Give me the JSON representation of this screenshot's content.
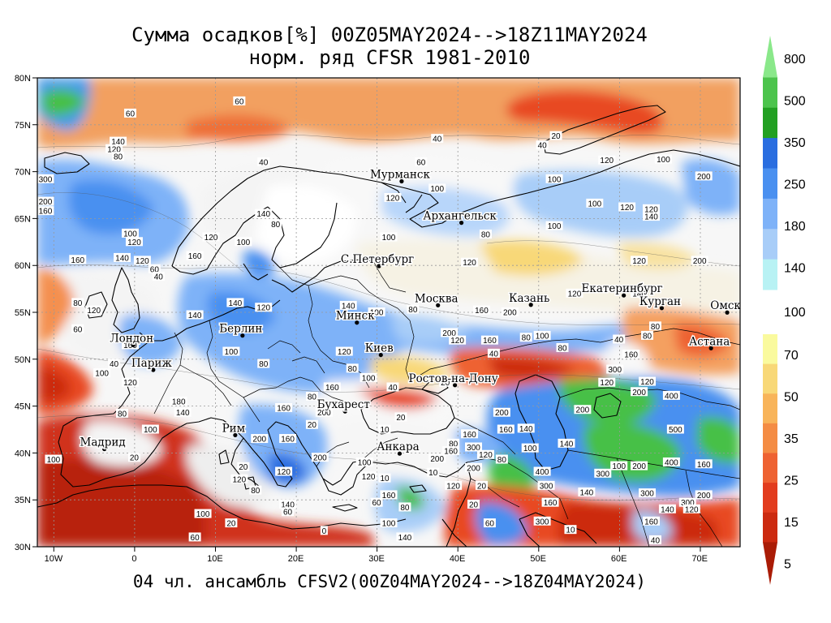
{
  "title_line1": "Сумма осадков[%] 00Z05MAY2024-->18Z11MAY2024",
  "title_line2": "норм. ряд CFSR 1981-2010",
  "footer": "04 чл. ансамбль CFSV2(00Z04MAY2024-->18Z04MAY2024)",
  "lat_labels": [
    "80N",
    "75N",
    "70N",
    "65N",
    "60N",
    "55N",
    "50N",
    "45N",
    "40N",
    "35N",
    "30N"
  ],
  "lon_labels": [
    "10W",
    "0",
    "10E",
    "20E",
    "30E",
    "40E",
    "50E",
    "60E",
    "70E"
  ],
  "cities": [
    {
      "name": "Мурманск",
      "lon": 33.1,
      "lat": 68.97
    },
    {
      "name": "Архангельск",
      "lon": 40.5,
      "lat": 64.55
    },
    {
      "name": "С.Петербург",
      "lon": 30.3,
      "lat": 59.93
    },
    {
      "name": "Москва",
      "lon": 37.6,
      "lat": 55.75
    },
    {
      "name": "Казань",
      "lon": 49.1,
      "lat": 55.8
    },
    {
      "name": "Екатеринбург",
      "lon": 60.6,
      "lat": 56.8
    },
    {
      "name": "Курган",
      "lon": 65.3,
      "lat": 55.45
    },
    {
      "name": "Омск",
      "lon": 73.4,
      "lat": 54.98
    },
    {
      "name": "Астана",
      "lon": 71.4,
      "lat": 51.17
    },
    {
      "name": "Минск",
      "lon": 27.56,
      "lat": 53.9
    },
    {
      "name": "Берлин",
      "lon": 13.4,
      "lat": 52.52
    },
    {
      "name": "Лондон",
      "lon": -0.12,
      "lat": 51.5
    },
    {
      "name": "Париж",
      "lon": 2.35,
      "lat": 48.86
    },
    {
      "name": "Киев",
      "lon": 30.52,
      "lat": 50.45
    },
    {
      "name": "Ростов-на-Дону",
      "lon": 39.7,
      "lat": 47.23
    },
    {
      "name": "Бухарест",
      "lon": 26.1,
      "lat": 44.43
    },
    {
      "name": "Рим",
      "lon": 12.5,
      "lat": 41.9
    },
    {
      "name": "Мадрид",
      "lon": -3.7,
      "lat": 40.42
    },
    {
      "name": "Анкара",
      "lon": 32.85,
      "lat": 39.93
    }
  ],
  "colorbar": {
    "upper_levels": [
      "800",
      "500",
      "350",
      "250",
      "180",
      "140"
    ],
    "middle_level": "100",
    "lower_levels": [
      "70",
      "50",
      "35",
      "25",
      "15",
      "5"
    ],
    "upper_colors": [
      "#8ae88a",
      "#4cc44c",
      "#22a022",
      "#2a6ee0",
      "#4a90f0",
      "#7eb2f8",
      "#a8cdf8",
      "#b8f2f4"
    ],
    "lower_colors": [
      "#fafa9e",
      "#f8d878",
      "#f8b45a",
      "#f48c44",
      "#ee6232",
      "#e23c1e",
      "#cc2a10",
      "#aa1c06"
    ]
  },
  "contour_labels": [
    {
      "t": "60",
      "lon": -0.5,
      "lat": 76.2
    },
    {
      "t": "60",
      "lon": 13,
      "lat": 77.5
    },
    {
      "t": "40",
      "lon": 37.5,
      "lat": 73.5
    },
    {
      "t": "20",
      "lon": 52.2,
      "lat": 73.8
    },
    {
      "t": "40",
      "lon": 50.5,
      "lat": 72.8
    },
    {
      "t": "100",
      "lon": 65.5,
      "lat": 71.3
    },
    {
      "t": "140",
      "lon": -2,
      "lat": 73.2
    },
    {
      "t": "120",
      "lon": -2.5,
      "lat": 72.4
    },
    {
      "t": "80",
      "lon": -2,
      "lat": 71.6
    },
    {
      "t": "300",
      "lon": -11,
      "lat": 69.2
    },
    {
      "t": "200",
      "lon": -11,
      "lat": 66.8
    },
    {
      "t": "160",
      "lon": -11,
      "lat": 65.8
    },
    {
      "t": "40",
      "lon": 16,
      "lat": 71
    },
    {
      "t": "120",
      "lon": 32,
      "lat": 67.2
    },
    {
      "t": "100",
      "lon": 37.5,
      "lat": 68.2
    },
    {
      "t": "60",
      "lon": 35.5,
      "lat": 71
    },
    {
      "t": "100",
      "lon": 52,
      "lat": 69.2
    },
    {
      "t": "120",
      "lon": 58.5,
      "lat": 71.2
    },
    {
      "t": "100",
      "lon": 57,
      "lat": 66.6
    },
    {
      "t": "120",
      "lon": 61,
      "lat": 66.2
    },
    {
      "t": "140",
      "lon": 64,
      "lat": 65.2
    },
    {
      "t": "120",
      "lon": 64,
      "lat": 66
    },
    {
      "t": "200",
      "lon": 70.5,
      "lat": 69.5
    },
    {
      "t": "80",
      "lon": 43.5,
      "lat": 63.3
    },
    {
      "t": "100",
      "lon": 52,
      "lat": 64.2
    },
    {
      "t": "100",
      "lon": 31.5,
      "lat": 63
    },
    {
      "t": "120",
      "lon": 41.5,
      "lat": 60.3
    },
    {
      "t": "120",
      "lon": 62.5,
      "lat": 60.5
    },
    {
      "t": "200",
      "lon": 70,
      "lat": 60.5
    },
    {
      "t": "140",
      "lon": 16,
      "lat": 65.5
    },
    {
      "t": "80",
      "lon": 17.5,
      "lat": 64.4
    },
    {
      "t": "100",
      "lon": 13.5,
      "lat": 62.5
    },
    {
      "t": "120",
      "lon": 9.5,
      "lat": 63
    },
    {
      "t": "160",
      "lon": 7.5,
      "lat": 61
    },
    {
      "t": "160",
      "lon": -7,
      "lat": 60.6
    },
    {
      "t": "120",
      "lon": 0,
      "lat": 62.5
    },
    {
      "t": "100",
      "lon": -0.5,
      "lat": 63.4
    },
    {
      "t": "120",
      "lon": 1,
      "lat": 60.5
    },
    {
      "t": "60",
      "lon": 2.5,
      "lat": 59.6
    },
    {
      "t": "40",
      "lon": 3,
      "lat": 58.8
    },
    {
      "t": "140",
      "lon": -1.5,
      "lat": 60.8
    },
    {
      "t": "80",
      "lon": -7,
      "lat": 56
    },
    {
      "t": "120",
      "lon": -5,
      "lat": 55.2
    },
    {
      "t": "140",
      "lon": 7.5,
      "lat": 54.7
    },
    {
      "t": "120",
      "lon": 16,
      "lat": 55.5
    },
    {
      "t": "140",
      "lon": 12.5,
      "lat": 56
    },
    {
      "t": "80",
      "lon": 34.5,
      "lat": 55.3
    },
    {
      "t": "100",
      "lon": 30,
      "lat": 55
    },
    {
      "t": "140",
      "lon": 26.5,
      "lat": 55.7
    },
    {
      "t": "160",
      "lon": 43,
      "lat": 55.2
    },
    {
      "t": "200",
      "lon": 46.5,
      "lat": 55
    },
    {
      "t": "120",
      "lon": 54.5,
      "lat": 57
    },
    {
      "t": "140",
      "lon": 62.5,
      "lat": 57
    },
    {
      "t": "200",
      "lon": 39,
      "lat": 52.8
    },
    {
      "t": "120",
      "lon": 40,
      "lat": 52
    },
    {
      "t": "160",
      "lon": 44,
      "lat": 52
    },
    {
      "t": "80",
      "lon": 48.5,
      "lat": 52.3
    },
    {
      "t": "100",
      "lon": 50.5,
      "lat": 52.5
    },
    {
      "t": "40",
      "lon": 44.5,
      "lat": 50.6
    },
    {
      "t": "80",
      "lon": 53,
      "lat": 51.2
    },
    {
      "t": "40",
      "lon": 60,
      "lat": 52.1
    },
    {
      "t": "80",
      "lon": 63.5,
      "lat": 52.5
    },
    {
      "t": "160",
      "lon": 61.5,
      "lat": 50.5
    },
    {
      "t": "300",
      "lon": 59.5,
      "lat": 48.9
    },
    {
      "t": "120",
      "lon": 63.5,
      "lat": 47.6
    },
    {
      "t": "200",
      "lon": 62.5,
      "lat": 46.5
    },
    {
      "t": "400",
      "lon": 66.5,
      "lat": 46.1
    },
    {
      "t": "500",
      "lon": 67,
      "lat": 42.5
    },
    {
      "t": "400",
      "lon": 66.5,
      "lat": 39
    },
    {
      "t": "160",
      "lon": 70.5,
      "lat": 38.8
    },
    {
      "t": "200",
      "lon": 70.5,
      "lat": 35.5
    },
    {
      "t": "300",
      "lon": 68.5,
      "lat": 34.7
    },
    {
      "t": "300",
      "lon": 63.5,
      "lat": 35.7
    },
    {
      "t": "140",
      "lon": 56,
      "lat": 35.8
    },
    {
      "t": "100",
      "lon": 60,
      "lat": 38.6
    },
    {
      "t": "200",
      "lon": 62.5,
      "lat": 38.6
    },
    {
      "t": "300",
      "lon": 58,
      "lat": 37.8
    },
    {
      "t": "160",
      "lon": 51.5,
      "lat": 34.7
    },
    {
      "t": "300",
      "lon": 50.5,
      "lat": 32.7
    },
    {
      "t": "10",
      "lon": 54,
      "lat": 31.8
    },
    {
      "t": "160",
      "lon": 64,
      "lat": 32.7
    },
    {
      "t": "140",
      "lon": 66,
      "lat": 34
    },
    {
      "t": "120",
      "lon": 69,
      "lat": 34
    },
    {
      "t": "40",
      "lon": 64.5,
      "lat": 30.7
    },
    {
      "t": "200",
      "lon": 45.5,
      "lat": 44.3
    },
    {
      "t": "160",
      "lon": 46,
      "lat": 42.5
    },
    {
      "t": "300",
      "lon": 42,
      "lat": 40.6
    },
    {
      "t": "160",
      "lon": 41.5,
      "lat": 42
    },
    {
      "t": "80",
      "lon": 39.5,
      "lat": 41
    },
    {
      "t": "200",
      "lon": 37.5,
      "lat": 39.4
    },
    {
      "t": "160",
      "lon": 39.2,
      "lat": 40.2
    },
    {
      "t": "120",
      "lon": 43.5,
      "lat": 39.8
    },
    {
      "t": "80",
      "lon": 45.5,
      "lat": 39.3
    },
    {
      "t": "100",
      "lon": 49,
      "lat": 40.5
    },
    {
      "t": "140",
      "lon": 48.5,
      "lat": 42.6
    },
    {
      "t": "200",
      "lon": 42,
      "lat": 38.4
    },
    {
      "t": "120",
      "lon": 39.5,
      "lat": 36.5
    },
    {
      "t": "20",
      "lon": 43,
      "lat": 36.5
    },
    {
      "t": "160",
      "lon": 31.5,
      "lat": 35.5
    },
    {
      "t": "80",
      "lon": 33.5,
      "lat": 34.2
    },
    {
      "t": "60",
      "lon": 30,
      "lat": 34.7
    },
    {
      "t": "100",
      "lon": 31.5,
      "lat": 32.5
    },
    {
      "t": "140",
      "lon": 33.5,
      "lat": 31
    },
    {
      "t": "10",
      "lon": 37,
      "lat": 37.9
    },
    {
      "t": "20",
      "lon": 33,
      "lat": 43.8
    },
    {
      "t": "10",
      "lon": 31,
      "lat": 42.5
    },
    {
      "t": "20",
      "lon": 38.5,
      "lat": 47.5
    },
    {
      "t": "40",
      "lon": 32,
      "lat": 47
    },
    {
      "t": "100",
      "lon": 29,
      "lat": 48
    },
    {
      "t": "80",
      "lon": 27,
      "lat": 49
    },
    {
      "t": "160",
      "lon": 24.5,
      "lat": 47
    },
    {
      "t": "20",
      "lon": 22,
      "lat": 43
    },
    {
      "t": "80",
      "lon": 22,
      "lat": 46
    },
    {
      "t": "120",
      "lon": 26,
      "lat": 50.8
    },
    {
      "t": "100",
      "lon": 12,
      "lat": 50.8
    },
    {
      "t": "80",
      "lon": 16,
      "lat": 49.5
    },
    {
      "t": "160",
      "lon": 18.5,
      "lat": 44.8
    },
    {
      "t": "200",
      "lon": 23.5,
      "lat": 44.3
    },
    {
      "t": "160",
      "lon": 19,
      "lat": 41.5
    },
    {
      "t": "200",
      "lon": 15.5,
      "lat": 41.5
    },
    {
      "t": "120",
      "lon": 18.5,
      "lat": 38
    },
    {
      "t": "100",
      "lon": 28.5,
      "lat": 39
    },
    {
      "t": "120",
      "lon": 29,
      "lat": 37.5
    },
    {
      "t": "140",
      "lon": 19,
      "lat": 34.5
    },
    {
      "t": "60",
      "lon": 19,
      "lat": 33.7
    },
    {
      "t": "100",
      "lon": 8.5,
      "lat": 33.5
    },
    {
      "t": "20",
      "lon": 12,
      "lat": 32.5
    },
    {
      "t": "60",
      "lon": 7.5,
      "lat": 31
    },
    {
      "t": "0",
      "lon": 23.5,
      "lat": 31.7
    },
    {
      "t": "180",
      "lon": 5.5,
      "lat": 45.5
    },
    {
      "t": "140",
      "lon": 6,
      "lat": 44.3
    },
    {
      "t": "100",
      "lon": 2,
      "lat": 42.5
    },
    {
      "t": "20",
      "lon": 13.5,
      "lat": 38.5
    },
    {
      "t": "120",
      "lon": 13,
      "lat": 37.2
    },
    {
      "t": "200",
      "lon": 23,
      "lat": 39.5
    },
    {
      "t": "100",
      "lon": -10,
      "lat": 39.3
    },
    {
      "t": "20",
      "lon": 0,
      "lat": 39.5
    },
    {
      "t": "120",
      "lon": -0.5,
      "lat": 47.5
    },
    {
      "t": "40",
      "lon": -2.5,
      "lat": 49.5
    },
    {
      "t": "80",
      "lon": -1.5,
      "lat": 44.2
    },
    {
      "t": "160",
      "lon": -0.5,
      "lat": 51.5
    },
    {
      "t": "60",
      "lon": -7,
      "lat": 53.2
    },
    {
      "t": "100",
      "lon": -4,
      "lat": 48.5
    },
    {
      "t": "10",
      "lon": 31,
      "lat": 37.3
    },
    {
      "t": "20",
      "lon": 42,
      "lat": 34.5
    },
    {
      "t": "60",
      "lon": 44,
      "lat": 32.5
    },
    {
      "t": "80",
      "lon": 15,
      "lat": 36
    },
    {
      "t": "200",
      "lon": 55.5,
      "lat": 44.6
    },
    {
      "t": "140",
      "lon": 53.5,
      "lat": 41
    },
    {
      "t": "400",
      "lon": 50.5,
      "lat": 38
    },
    {
      "t": "300",
      "lon": 51,
      "lat": 36.5
    },
    {
      "t": "120",
      "lon": 58.5,
      "lat": 47.5
    },
    {
      "t": "80",
      "lon": 64.5,
      "lat": 53.5
    }
  ]
}
